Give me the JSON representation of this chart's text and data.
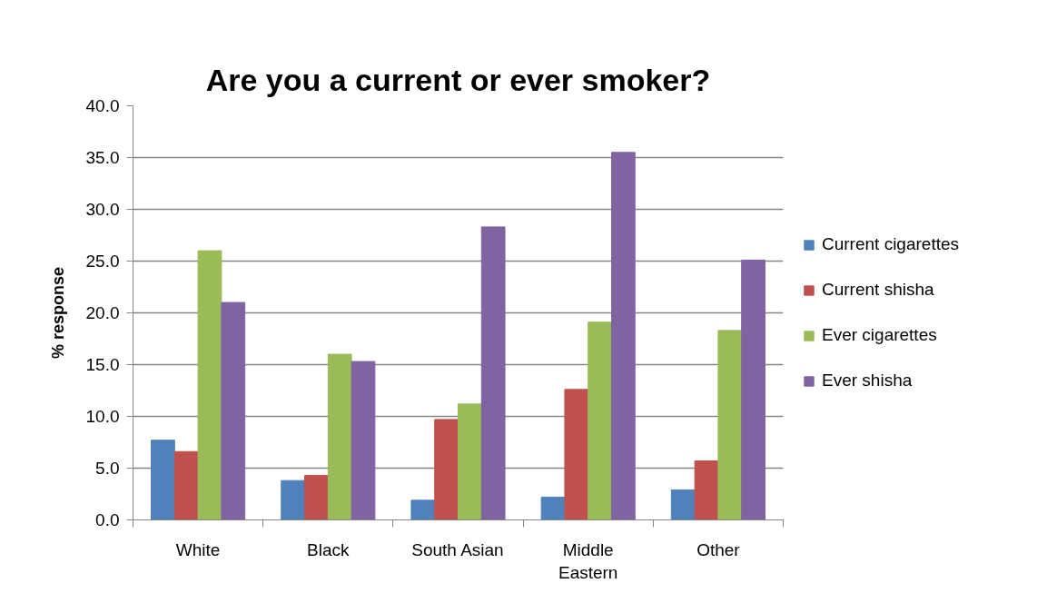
{
  "chart_data": {
    "type": "bar",
    "title": "Are you a current or ever smoker?",
    "ylabel": "% response",
    "categories": [
      "White",
      "Black",
      "South Asian",
      "Middle Eastern",
      "Other"
    ],
    "series": [
      {
        "name": "Current cigarettes",
        "color": "#4f81bd",
        "values": [
          7.7,
          3.8,
          1.9,
          2.2,
          2.9
        ]
      },
      {
        "name": "Current shisha",
        "color": "#c0504d",
        "values": [
          6.6,
          4.3,
          9.7,
          12.6,
          5.7
        ]
      },
      {
        "name": "Ever cigarettes",
        "color": "#9bbb59",
        "values": [
          26.0,
          16.0,
          11.2,
          19.1,
          18.3
        ]
      },
      {
        "name": "Ever shisha",
        "color": "#8064a2",
        "values": [
          21.0,
          15.3,
          28.3,
          35.5,
          25.1
        ]
      }
    ],
    "ylim": [
      0,
      40
    ],
    "yticks": [
      {
        "value": 0,
        "label": "0.0"
      },
      {
        "value": 5,
        "label": "5.0"
      },
      {
        "value": 10,
        "label": "10.0"
      },
      {
        "value": 15,
        "label": "15.0"
      },
      {
        "value": 20,
        "label": "20.0"
      },
      {
        "value": 25,
        "label": "25.0"
      },
      {
        "value": 30,
        "label": "30.0"
      },
      {
        "value": 35,
        "label": "35.0"
      },
      {
        "value": 40,
        "label": "40.0"
      }
    ],
    "grid": "y",
    "legend": "right"
  }
}
